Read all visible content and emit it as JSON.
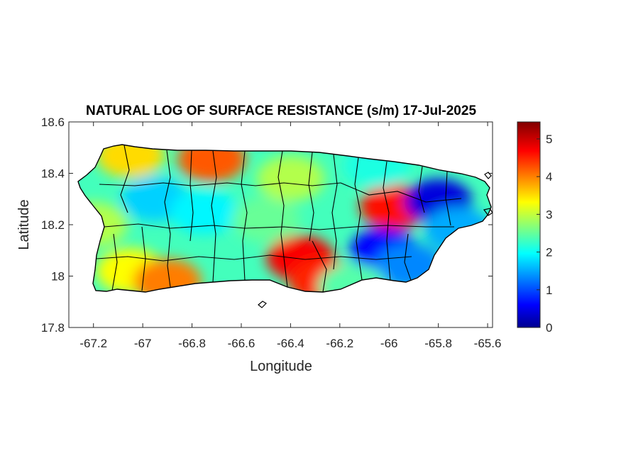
{
  "figure": {
    "title": "NATURAL LOG OF SURFACE RESISTANCE (s/m) 17-Jul-2025"
  },
  "colors": {
    "background": "#ffffff",
    "axis": "#262626",
    "coast_boundaries": "#000000",
    "colormap": "jet"
  },
  "chart_data": {
    "type": "heatmap",
    "title": "NATURAL LOG OF SURFACE RESISTANCE (s/m) 17-Jul-2025",
    "xlabel": "Longitude",
    "ylabel": "Latitude",
    "xlim": [
      -67.3,
      -65.58
    ],
    "ylim": [
      17.8,
      18.6
    ],
    "xticks": [
      -67.2,
      -67,
      -66.8,
      -66.6,
      -66.4,
      -66.2,
      -66,
      -65.8,
      -65.6
    ],
    "xtick_labels": [
      "-67.2",
      "-67",
      "-66.8",
      "-66.6",
      "-66.4",
      "-66.2",
      "-66",
      "-65.8",
      "-65.6"
    ],
    "yticks": [
      17.8,
      18,
      18.2,
      18.4,
      18.6
    ],
    "ytick_labels": [
      "17.8",
      "18",
      "18.2",
      "18.4",
      "18.6"
    ],
    "colorbar": {
      "min": 0,
      "max": 5.45,
      "ticks": [
        0,
        1,
        2,
        3,
        4,
        5
      ],
      "tick_labels": [
        "0",
        "1",
        "2",
        "3",
        "4",
        "5"
      ],
      "colormap": "jet"
    },
    "region": "Puerto Rico",
    "grid": false,
    "value_regions": [
      {
        "name": "north coast high",
        "lon": -66.72,
        "lat": 18.455,
        "value": 4.3
      },
      {
        "name": "northwest coast",
        "lon": -67.05,
        "lat": 18.47,
        "value": 3.6
      },
      {
        "name": "west interior",
        "lon": -66.95,
        "lat": 18.3,
        "value": 1.8
      },
      {
        "name": "central interior",
        "lon": -66.75,
        "lat": 18.25,
        "value": 2.0
      },
      {
        "name": "southwest",
        "lon": -67.05,
        "lat": 18.02,
        "value": 3.4
      },
      {
        "name": "southwest coast",
        "lon": -66.9,
        "lat": 17.98,
        "value": 4.1
      },
      {
        "name": "west coast",
        "lon": -67.2,
        "lat": 18.2,
        "value": 3.0
      },
      {
        "name": "south central high",
        "lon": -66.36,
        "lat": 18.07,
        "value": 4.8
      },
      {
        "name": "south central coast",
        "lon": -66.27,
        "lat": 17.98,
        "value": 4.6
      },
      {
        "name": "central mid",
        "lon": -66.5,
        "lat": 18.22,
        "value": 2.6
      },
      {
        "name": "north central",
        "lon": -66.4,
        "lat": 18.38,
        "value": 3.0
      },
      {
        "name": "northeast high",
        "lon": -65.98,
        "lat": 18.27,
        "value": 4.7
      },
      {
        "name": "east low",
        "lon": -66.02,
        "lat": 18.1,
        "value": 0.7
      },
      {
        "name": "northeast low",
        "lon": -65.8,
        "lat": 18.29,
        "value": 0.5
      },
      {
        "name": "southeast",
        "lon": -65.92,
        "lat": 18.04,
        "value": 1.4
      },
      {
        "name": "east coast",
        "lon": -65.72,
        "lat": 18.18,
        "value": 1.6
      },
      {
        "name": "north east coast",
        "lon": -66.05,
        "lat": 18.43,
        "value": 2.2
      },
      {
        "name": "south east coast",
        "lon": -66.15,
        "lat": 17.96,
        "value": 2.5
      }
    ]
  }
}
